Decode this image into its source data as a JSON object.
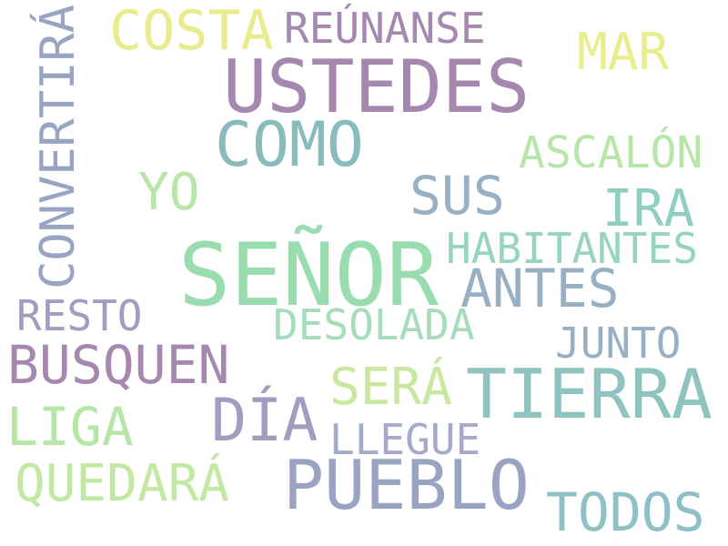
{
  "words": [
    {
      "id": "senor",
      "text": "SEÑOR",
      "color": "#99dcb0"
    },
    {
      "id": "ustedes",
      "text": "USTEDES",
      "color": "#a488b0"
    },
    {
      "id": "tierra",
      "text": "TIERRA",
      "color": "#8ec3c0"
    },
    {
      "id": "pueblo",
      "text": "PUEBLO",
      "color": "#98a4c2"
    },
    {
      "id": "como",
      "text": "COMO",
      "color": "#88bcbc"
    },
    {
      "id": "busquen",
      "text": "BUSQUEN",
      "color": "#a488b0"
    },
    {
      "id": "dia",
      "text": "DÍA",
      "color": "#a19dc0"
    },
    {
      "id": "costa",
      "text": "COSTA",
      "color": "#e8ec8e"
    },
    {
      "id": "antes",
      "text": "ANTES",
      "color": "#98b0c4"
    },
    {
      "id": "todos",
      "text": "TODOS",
      "color": "#8ec0c6"
    },
    {
      "id": "sus",
      "text": "SUS",
      "color": "#98b0c4"
    },
    {
      "id": "liga",
      "text": "LIGA",
      "color": "#b6e6a6"
    },
    {
      "id": "sera",
      "text": "SERÁ",
      "color": "#c8e8a0"
    },
    {
      "id": "ira",
      "text": "IRA",
      "color": "#8ecfc2"
    },
    {
      "id": "quedara",
      "text": "QUEDARÁ",
      "color": "#c2e8a4"
    },
    {
      "id": "mar",
      "text": "MAR",
      "color": "#e8ee8e"
    },
    {
      "id": "yo",
      "text": "YO",
      "color": "#b8e6a8"
    },
    {
      "id": "reunanse",
      "text": "REÚNANSE",
      "color": "#a488b0"
    },
    {
      "id": "habitantes",
      "text": "HABITANTES",
      "color": "#96d4bc"
    },
    {
      "id": "ascalon",
      "text": "ASCALÓN",
      "color": "#b8e6a8"
    },
    {
      "id": "desolada",
      "text": "DESOLADA",
      "color": "#a6dcbc"
    },
    {
      "id": "resto",
      "text": "RESTO",
      "color": "#a19dc0"
    },
    {
      "id": "junto",
      "text": "JUNTO",
      "color": "#98b0c4"
    },
    {
      "id": "llegue",
      "text": "LLEGUE",
      "color": "#a4aac8"
    },
    {
      "id": "convertira",
      "text": "CONVERTIRÁ",
      "color": "#98a4c2",
      "vertical": true
    }
  ]
}
